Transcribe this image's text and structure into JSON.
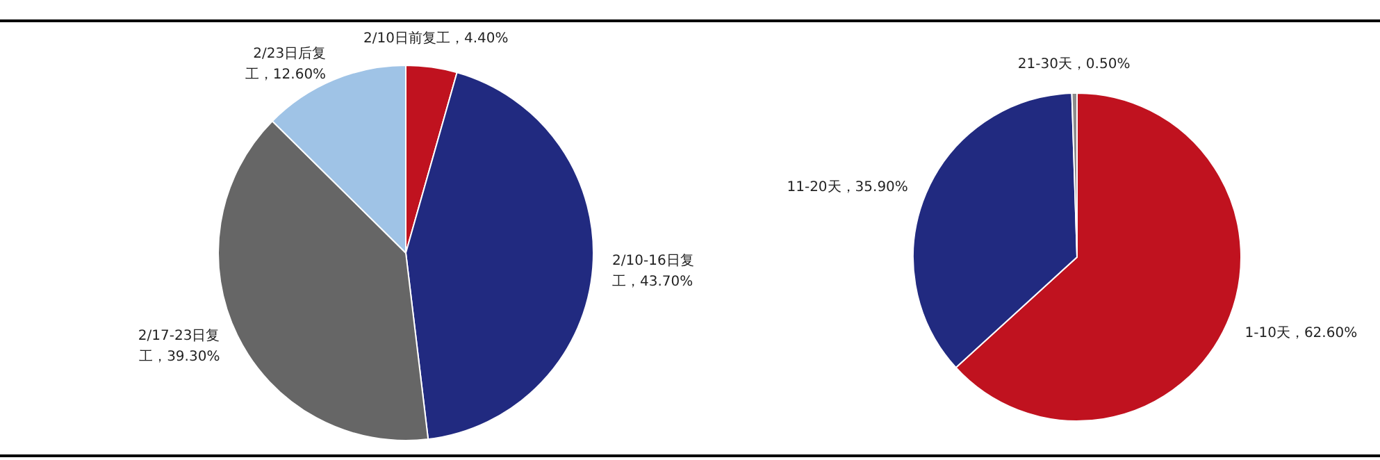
{
  "chart_data": [
    {
      "type": "pie",
      "categories": [
        "2/10日前复工",
        "2/10-16日复工",
        "2/17-23日复工",
        "2/23日后复工"
      ],
      "values": [
        4.4,
        43.7,
        39.3,
        12.6
      ],
      "value_labels": [
        "4.40%",
        "43.70%",
        "39.30%",
        "12.60%"
      ],
      "colors": [
        "#c0121f",
        "#212a80",
        "#666666",
        "#9fc3e6"
      ]
    },
    {
      "type": "pie",
      "categories": [
        "1-10天",
        "11-20天",
        "21-30天"
      ],
      "values": [
        62.6,
        35.9,
        0.5
      ],
      "value_labels": [
        "62.60%",
        "35.90%",
        "0.50%"
      ],
      "colors": [
        "#c0121f",
        "#212a80",
        "#8c8c8c"
      ]
    }
  ]
}
